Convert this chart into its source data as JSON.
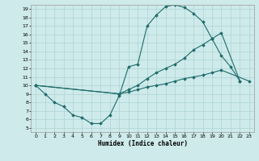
{
  "xlabel": "Humidex (Indice chaleur)",
  "bg_color": "#ceeaea",
  "grid_color": "#aed4d4",
  "line_color": "#1e6b6b",
  "xlim": [
    -0.5,
    23.5
  ],
  "ylim": [
    4.5,
    19.5
  ],
  "xticks": [
    0,
    1,
    2,
    3,
    4,
    5,
    6,
    7,
    8,
    9,
    10,
    11,
    12,
    13,
    14,
    15,
    16,
    17,
    18,
    19,
    20,
    21,
    22,
    23
  ],
  "yticks": [
    5,
    6,
    7,
    8,
    9,
    10,
    11,
    12,
    13,
    14,
    15,
    16,
    17,
    18,
    19
  ],
  "line1_x": [
    0,
    1,
    2,
    3,
    4,
    5,
    6,
    7,
    8,
    9,
    10,
    11,
    12,
    13,
    14,
    15,
    16,
    17,
    18,
    19,
    20,
    21,
    22
  ],
  "line1_y": [
    10,
    9,
    8,
    7.5,
    6.5,
    6.2,
    5.5,
    5.5,
    6.5,
    8.8,
    12.2,
    12.5,
    17.0,
    18.3,
    19.3,
    19.5,
    19.2,
    18.5,
    17.5,
    15.5,
    13.5,
    12.2,
    10.5
  ],
  "line2_x": [
    0,
    9,
    10,
    11,
    12,
    13,
    14,
    15,
    16,
    17,
    18,
    19,
    20,
    22
  ],
  "line2_y": [
    10,
    9.0,
    9.5,
    10.0,
    10.8,
    11.5,
    12.0,
    12.5,
    13.2,
    14.2,
    14.8,
    15.5,
    16.2,
    10.5
  ],
  "line3_x": [
    0,
    9,
    10,
    11,
    12,
    13,
    14,
    15,
    16,
    17,
    18,
    19,
    20,
    23
  ],
  "line3_y": [
    10,
    9.0,
    9.2,
    9.5,
    9.8,
    10.0,
    10.2,
    10.5,
    10.8,
    11.0,
    11.2,
    11.5,
    11.8,
    10.5
  ]
}
